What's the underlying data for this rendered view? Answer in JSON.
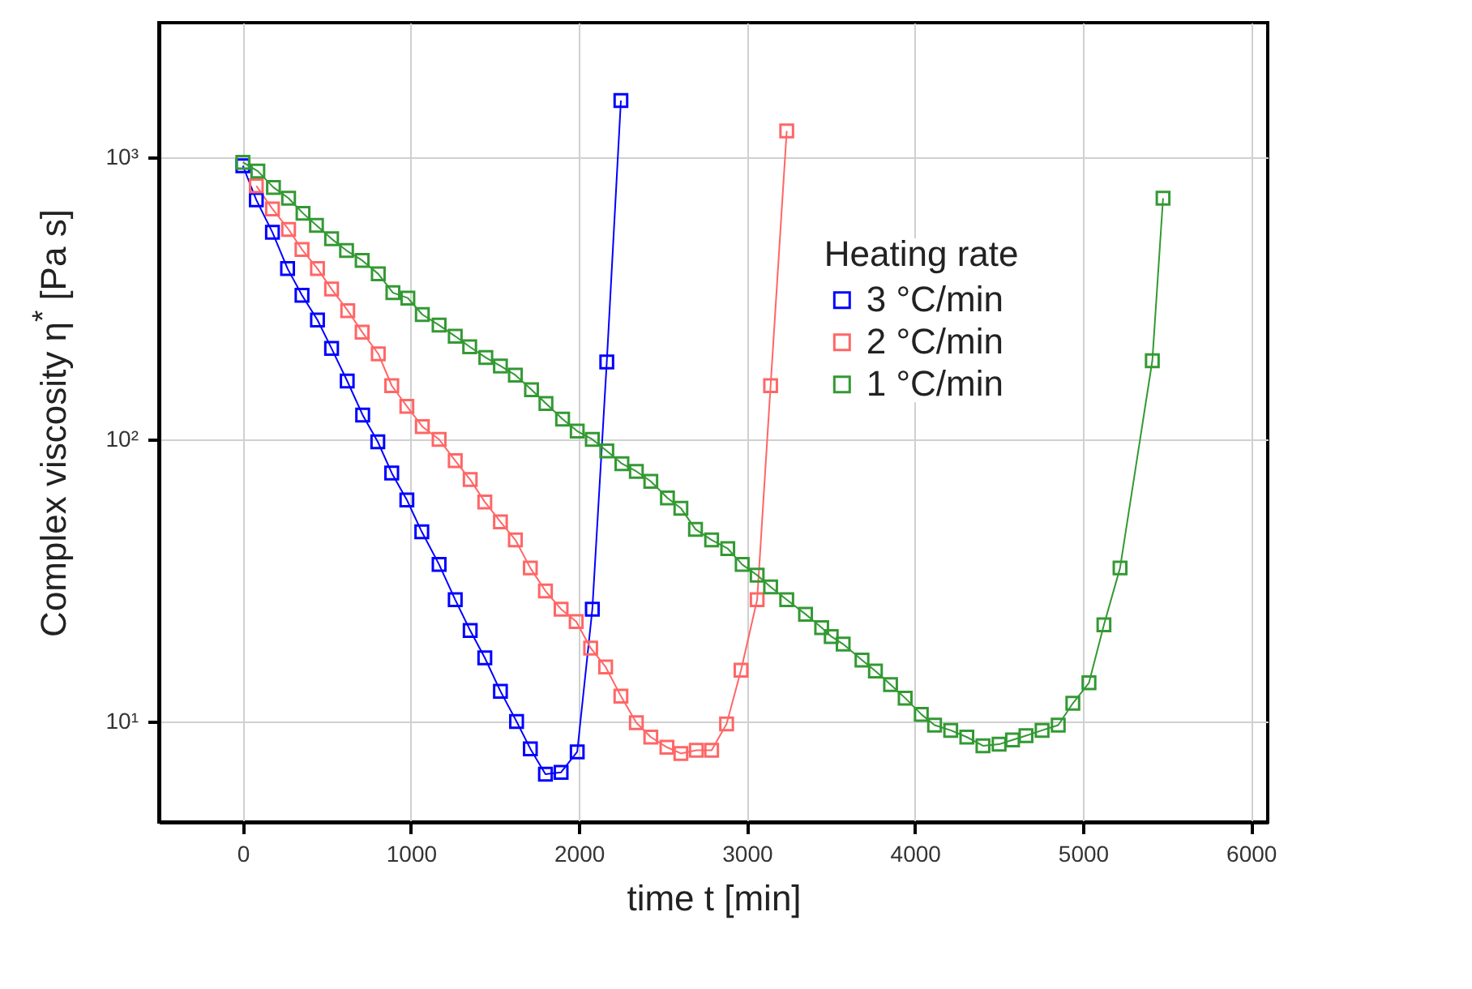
{
  "chart_data": {
    "type": "line",
    "xlabel": "time t [min]",
    "ylabel": "Complex viscosity η$^{*}$ [Pa s]",
    "legend_title": "Heating rate",
    "xlim": [
      -500,
      6100
    ],
    "xticks": [
      0,
      1000,
      2000,
      3000,
      4000,
      5000,
      6000
    ],
    "ylim": [
      4.4,
      3000
    ],
    "yticks": [
      {
        "value": 10,
        "label": "10¹"
      },
      {
        "value": 100,
        "label": "10²"
      },
      {
        "value": 1000,
        "label": "10³"
      }
    ],
    "log": "y",
    "grid": true,
    "legend": "top right",
    "marker": "square",
    "line_style": "solid",
    "series": [
      {
        "name": "3 °C/min",
        "color": "#0000ff",
        "x": [
          0,
          80,
          176,
          266,
          352,
          444,
          528,
          621,
          713,
          803,
          886,
          976,
          1065,
          1168,
          1264,
          1353,
          1440,
          1533,
          1629,
          1711,
          1801,
          1894,
          1990,
          2080,
          2166,
          2250
        ],
        "values": [
          933,
          706,
          542,
          403,
          324,
          265,
          210,
          161,
          122,
          98,
          76,
          61,
          47,
          36,
          27,
          21,
          16.8,
          12.8,
          10,
          8,
          6.5,
          6.6,
          7.8,
          25,
          188,
          1590
        ]
      },
      {
        "name": "2 °C/min",
        "color": "#ff6666",
        "x": [
          80,
          176,
          272,
          352,
          444,
          528,
          624,
          710,
          806,
          886,
          976,
          1068,
          1168,
          1264,
          1353,
          1440,
          1533,
          1622,
          1711,
          1801,
          1894,
          1984,
          2070,
          2159,
          2250,
          2342,
          2428,
          2524,
          2607,
          2699,
          2790,
          2879,
          2965,
          3061,
          3141,
          3237
        ],
        "values": [
          792,
          656,
          555,
          471,
          403,
          341,
          286,
          240,
          201,
          155,
          131,
          111,
          100,
          84,
          72,
          60,
          51,
          44,
          35,
          29,
          25,
          22.6,
          18.2,
          15.6,
          12.3,
          9.9,
          8.8,
          8.1,
          7.7,
          7.9,
          7.9,
          9.8,
          15.2,
          27,
          155,
          1240
        ]
      },
      {
        "name": "1 °C/min",
        "color": "#339933",
        "x": [
          0,
          89,
          182,
          272,
          358,
          438,
          528,
          617,
          710,
          806,
          893,
          982,
          1068,
          1168,
          1264,
          1350,
          1446,
          1533,
          1622,
          1718,
          1804,
          1903,
          1990,
          2080,
          2166,
          2256,
          2342,
          2428,
          2527,
          2607,
          2694,
          2790,
          2886,
          2972,
          3061,
          3141,
          3237,
          3349,
          3445,
          3502,
          3573,
          3685,
          3765,
          3855,
          3942,
          4038,
          4117,
          4213,
          4309,
          4405,
          4501,
          4581,
          4661,
          4757,
          4853,
          4940,
          5036,
          5125,
          5221,
          5413,
          5477
        ],
        "values": [
          960,
          893,
          782,
          716,
          633,
          574,
          514,
          467,
          431,
          386,
          331,
          317,
          277,
          254,
          232,
          213,
          195,
          182,
          169,
          150,
          134,
          118,
          107,
          100,
          91,
          82,
          77,
          71,
          62,
          57,
          48,
          44,
          41,
          36,
          33,
          30,
          27,
          24,
          21.5,
          20,
          18.8,
          16.5,
          15.1,
          13.5,
          12.1,
          10.6,
          9.7,
          9.3,
          8.8,
          8.2,
          8.3,
          8.6,
          8.9,
          9.3,
          9.7,
          11.6,
          13.7,
          22,
          35,
          190,
          716
        ]
      }
    ]
  }
}
